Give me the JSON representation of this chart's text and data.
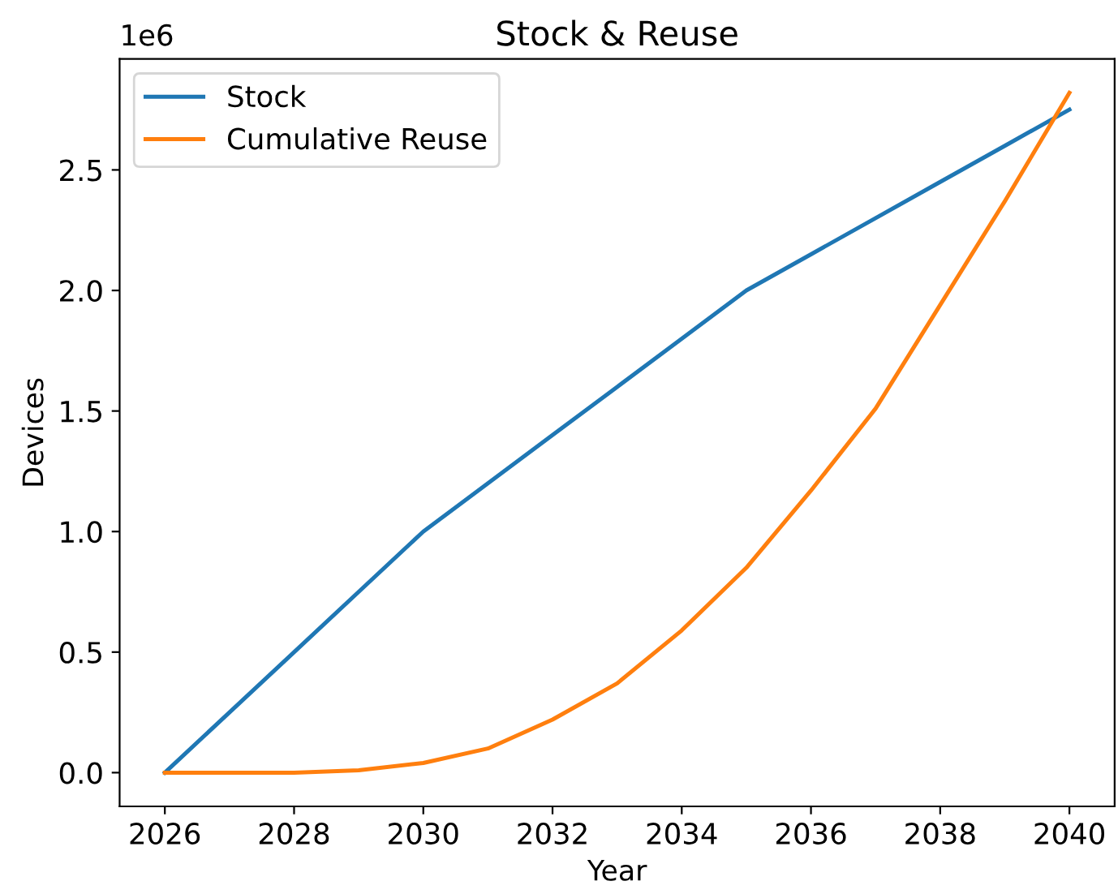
{
  "chart_data": {
    "type": "line",
    "title": "Stock & Reuse",
    "xlabel": "Year",
    "ylabel": "Devices",
    "annotations": [
      "1e6"
    ],
    "x": [
      2026,
      2027,
      2028,
      2029,
      2030,
      2031,
      2032,
      2033,
      2034,
      2035,
      2036,
      2037,
      2038,
      2039,
      2040
    ],
    "series": [
      {
        "name": "Stock",
        "color": "#1f77b4",
        "values": [
          0,
          0.25,
          0.5,
          0.75,
          1.0,
          1.2,
          1.4,
          1.6,
          1.8,
          2.0,
          2.15,
          2.3,
          2.45,
          2.6,
          2.75
        ]
      },
      {
        "name": "Cumulative Reuse",
        "color": "#ff7f0e",
        "values": [
          0,
          0,
          0,
          0.01,
          0.04,
          0.1,
          0.22,
          0.37,
          0.59,
          0.85,
          1.17,
          1.51,
          1.94,
          2.37,
          2.82
        ]
      }
    ],
    "xlim": [
      2025.3,
      2040.7
    ],
    "xticks": [
      2026,
      2028,
      2030,
      2032,
      2034,
      2036,
      2038,
      2040
    ],
    "ylim": [
      -0.14,
      2.96
    ],
    "yticks": [
      {
        "value": 0,
        "label": "0.0"
      },
      0.5,
      {
        "value": 1,
        "label": "1.0"
      },
      1.5,
      {
        "value": 2,
        "label": "2.0"
      },
      2.5
    ],
    "grid": false,
    "legend": "top left",
    "marker": "none",
    "line_style": "solid"
  }
}
